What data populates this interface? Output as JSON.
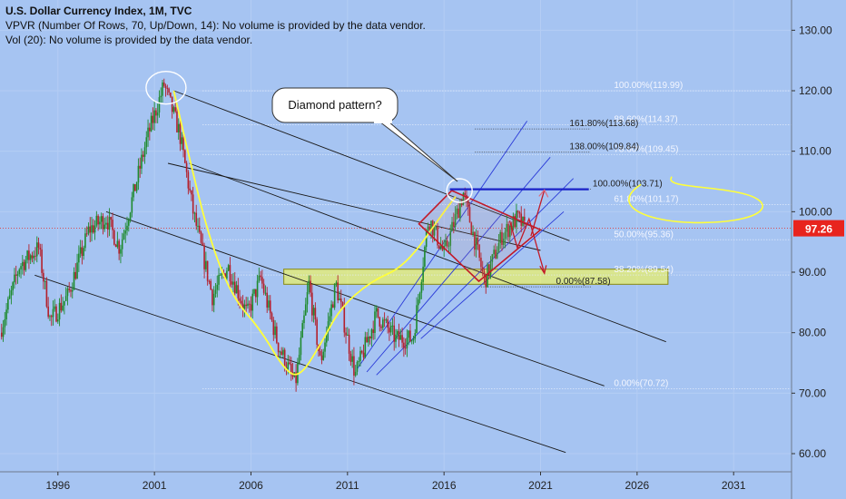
{
  "header": {
    "title": "U.S. Dollar Currency Index, 1M, TVC",
    "vpvr": "VPVR (Number Of Rows, 70, Up/Down, 14): No volume is provided by the data vendor.",
    "vol": "Vol (20): No volume is provided by the data vendor."
  },
  "callout": {
    "text": "Diamond pattern?"
  },
  "current_price": {
    "label": "97.26",
    "value": 97.26
  },
  "colors": {
    "background": "#a6c4f2",
    "up_candle": "#1e8a2e",
    "down_candle": "#b3202c",
    "price_badge": "#e8241e",
    "yellow": "#ffff3a",
    "red_pattern": "#c21a28",
    "blue_level": "#1a22c8",
    "channel_blue": "#2a3ad8"
  },
  "chart_data": {
    "type": "candlestick",
    "x_axis": {
      "ticks": [
        "1996",
        "2001",
        "2006",
        "2011",
        "2016",
        "2021",
        "2026",
        "2031"
      ],
      "range": [
        1993,
        2034
      ]
    },
    "y_axis": {
      "ticks": [
        "60.00",
        "70.00",
        "80.00",
        "90.00",
        "100.00",
        "110.00",
        "120.00",
        "130.00"
      ],
      "range": [
        57,
        135
      ],
      "side": "right"
    },
    "key_points": [
      {
        "x": 1993.0,
        "y": 80
      },
      {
        "x": 1994.0,
        "y": 91
      },
      {
        "x": 1995.0,
        "y": 94
      },
      {
        "x": 1995.6,
        "y": 82
      },
      {
        "x": 1996.5,
        "y": 86
      },
      {
        "x": 1997.6,
        "y": 97
      },
      {
        "x": 1998.5,
        "y": 99
      },
      {
        "x": 1999.2,
        "y": 94
      },
      {
        "x": 2000.0,
        "y": 104
      },
      {
        "x": 2000.6,
        "y": 112
      },
      {
        "x": 2001.5,
        "y": 121
      },
      {
        "x": 2002.3,
        "y": 113
      },
      {
        "x": 2003.0,
        "y": 100
      },
      {
        "x": 2004.0,
        "y": 86
      },
      {
        "x": 2004.8,
        "y": 91
      },
      {
        "x": 2005.8,
        "y": 83
      },
      {
        "x": 2006.5,
        "y": 89
      },
      {
        "x": 2007.4,
        "y": 78
      },
      {
        "x": 2008.3,
        "y": 71.5
      },
      {
        "x": 2009.0,
        "y": 88
      },
      {
        "x": 2009.6,
        "y": 75
      },
      {
        "x": 2010.4,
        "y": 88
      },
      {
        "x": 2011.4,
        "y": 73
      },
      {
        "x": 2012.5,
        "y": 83
      },
      {
        "x": 2013.5,
        "y": 79
      },
      {
        "x": 2014.4,
        "y": 79
      },
      {
        "x": 2015.2,
        "y": 99
      },
      {
        "x": 2016.0,
        "y": 93
      },
      {
        "x": 2017.0,
        "y": 103
      },
      {
        "x": 2018.1,
        "y": 88.5
      },
      {
        "x": 2019.0,
        "y": 96
      },
      {
        "x": 2019.8,
        "y": 99
      },
      {
        "x": 2020.2,
        "y": 97.2
      }
    ],
    "fib_levels_top": [
      {
        "label": "100.00%(119.99)",
        "value": 119.99
      },
      {
        "label": "88.60%(114.37)",
        "value": 114.37
      },
      {
        "label": "78.60%(109.45)",
        "value": 109.45
      },
      {
        "label": "61.80%(101.17)",
        "value": 101.17
      },
      {
        "label": "50.00%(95.36)",
        "value": 95.36
      },
      {
        "label": "38.20%(89.54)",
        "value": 89.54
      },
      {
        "label": "0.00%(70.72)",
        "value": 70.72
      }
    ],
    "fib_levels_ext": [
      {
        "label": "161.80%(113.68)",
        "value": 113.68
      },
      {
        "label": "138.00%(109.84)",
        "value": 109.84
      },
      {
        "label": "100.00%(103.71)",
        "value": 103.71
      },
      {
        "label": "0.00%(87.58)",
        "value": 87.58
      }
    ],
    "support_zone": {
      "x_start": 2007.7,
      "x_end": 2027.6,
      "y_low": 88.0,
      "y_high": 90.5
    },
    "horizontal_level": {
      "x_start": 2016.3,
      "x_end": 2023.5,
      "value": 103.71
    },
    "diamond": [
      {
        "x": 2014.7,
        "y": 98
      },
      {
        "x": 2016.4,
        "y": 103.5
      },
      {
        "x": 2021.0,
        "y": 97
      },
      {
        "x": 2017.8,
        "y": 88.5
      }
    ],
    "projection_paths": [
      [
        {
          "x": 2019.4,
          "y": 98.5
        },
        {
          "x": 2019.8,
          "y": 94
        },
        {
          "x": 2020.4,
          "y": 98.8
        },
        {
          "x": 2021.2,
          "y": 89.8
        }
      ],
      [
        {
          "x": 2020.5,
          "y": 96
        },
        {
          "x": 2021.2,
          "y": 103.6
        }
      ]
    ],
    "channel_lines_black": [
      [
        {
          "x": 2002.0,
          "y": 120
        },
        {
          "x": 2022.5,
          "y": 95.2
        }
      ],
      [
        {
          "x": 2001.7,
          "y": 108
        },
        {
          "x": 2021.0,
          "y": 93.6
        }
      ],
      [
        {
          "x": 2002.8,
          "y": 108
        },
        {
          "x": 2027.5,
          "y": 78.5
        }
      ],
      [
        {
          "x": 1998.5,
          "y": 100
        },
        {
          "x": 2024.3,
          "y": 71.2
        }
      ],
      [
        {
          "x": 1994.8,
          "y": 89.5
        },
        {
          "x": 2022.3,
          "y": 60.2
        }
      ]
    ],
    "channel_lines_blue": [
      [
        {
          "x": 2011.5,
          "y": 74
        },
        {
          "x": 2020.3,
          "y": 115
        }
      ],
      [
        {
          "x": 2012.0,
          "y": 73.5
        },
        {
          "x": 2021.5,
          "y": 109
        }
      ],
      [
        {
          "x": 2012.5,
          "y": 73
        },
        {
          "x": 2022.7,
          "y": 105.5
        }
      ],
      [
        {
          "x": 2014.8,
          "y": 79
        },
        {
          "x": 2022.2,
          "y": 100
        }
      ]
    ],
    "yellow_curve": [
      {
        "x": 2002.0,
        "y": 120
      },
      {
        "x": 2002.8,
        "y": 109
      },
      {
        "x": 2003.8,
        "y": 96
      },
      {
        "x": 2005.0,
        "y": 86
      },
      {
        "x": 2006.5,
        "y": 80.5
      },
      {
        "x": 2007.7,
        "y": 74
      },
      {
        "x": 2008.5,
        "y": 72.5
      },
      {
        "x": 2009.6,
        "y": 78
      },
      {
        "x": 2010.6,
        "y": 84
      },
      {
        "x": 2012.2,
        "y": 88.5
      },
      {
        "x": 2014.0,
        "y": 91
      },
      {
        "x": 2016.0,
        "y": 100
      },
      {
        "x": 2016.6,
        "y": 102.5
      }
    ]
  }
}
